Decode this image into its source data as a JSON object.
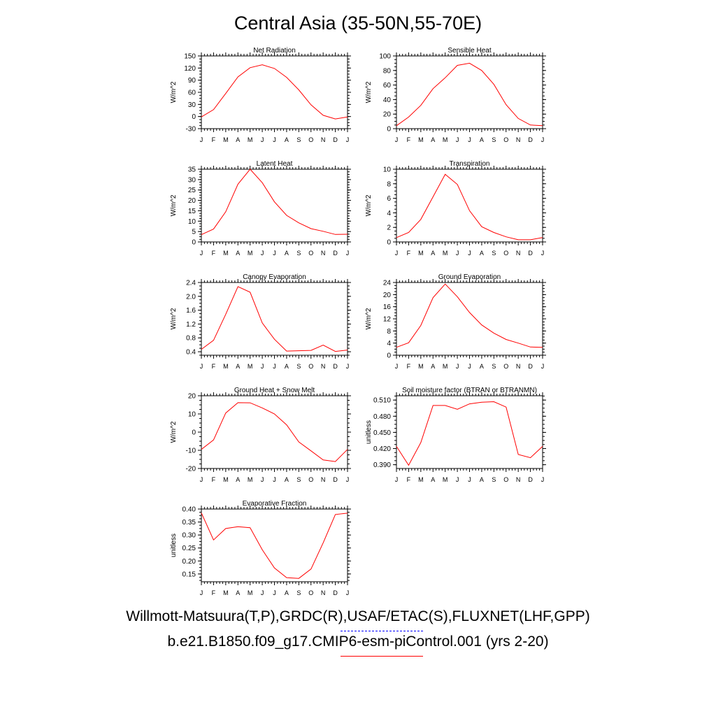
{
  "title": "Central Asia (35-50N,55-70E)",
  "footer": {
    "obs_label": "Willmott-Matsuura(T,P),GRDC(R),USAF/ETAC(S),FLUXNET(LHF,GPP)",
    "model_label": "b.e21.B1850.f09_g17.CMIP6-esm-piControl.001 (yrs 2-20)",
    "obs_color": "#0000ff",
    "model_color": "#ff0000"
  },
  "chart_data": [
    {
      "type": "line",
      "title": "Net Radiation",
      "ylabel": "W/m^2",
      "categories": [
        "J",
        "F",
        "M",
        "A",
        "M",
        "J",
        "J",
        "A",
        "S",
        "O",
        "N",
        "D",
        "J"
      ],
      "yticks": [
        -30,
        0,
        30,
        60,
        90,
        120,
        150
      ],
      "ylim": [
        -30,
        150
      ],
      "series": [
        {
          "color": "#ff0000",
          "values": [
            -1,
            17,
            57,
            98,
            121,
            128,
            119,
            97,
            66,
            29,
            3,
            -6,
            -1
          ]
        }
      ]
    },
    {
      "type": "line",
      "title": "Sensible Heat",
      "ylabel": "W/m^2",
      "categories": [
        "J",
        "F",
        "M",
        "A",
        "M",
        "J",
        "J",
        "A",
        "S",
        "O",
        "N",
        "D",
        "J"
      ],
      "yticks": [
        0,
        20,
        40,
        60,
        80,
        100
      ],
      "ylim": [
        0,
        100
      ],
      "series": [
        {
          "color": "#ff0000",
          "values": [
            4,
            16,
            32,
            55,
            70,
            87,
            90,
            80,
            61,
            33,
            14,
            5,
            4
          ]
        }
      ]
    },
    {
      "type": "line",
      "title": "Latent Heat",
      "ylabel": "W/m^2",
      "categories": [
        "J",
        "F",
        "M",
        "A",
        "M",
        "J",
        "J",
        "A",
        "S",
        "O",
        "N",
        "D",
        "J"
      ],
      "yticks": [
        0,
        5,
        10,
        15,
        20,
        25,
        30,
        35
      ],
      "ylim": [
        0,
        35
      ],
      "series": [
        {
          "color": "#ff0000",
          "values": [
            3.5,
            6.2,
            14.5,
            27.8,
            35,
            28.5,
            19.3,
            12.8,
            9.2,
            6.4,
            5.1,
            3.6,
            3.7
          ]
        }
      ]
    },
    {
      "type": "line",
      "title": "Transpiration",
      "ylabel": "W/m^2",
      "categories": [
        "J",
        "F",
        "M",
        "A",
        "M",
        "J",
        "J",
        "A",
        "S",
        "O",
        "N",
        "D",
        "J"
      ],
      "yticks": [
        0,
        2,
        4,
        6,
        8,
        10
      ],
      "ylim": [
        0,
        10
      ],
      "series": [
        {
          "color": "#ff0000",
          "values": [
            0.6,
            1.3,
            3.1,
            6.2,
            9.3,
            7.9,
            4.3,
            2.1,
            1.3,
            0.7,
            0.3,
            0.3,
            0.6
          ]
        }
      ]
    },
    {
      "type": "line",
      "title": "Canopy Evaporation",
      "ylabel": "W/m^2",
      "categories": [
        "J",
        "F",
        "M",
        "A",
        "M",
        "J",
        "J",
        "A",
        "S",
        "O",
        "N",
        "D",
        "J"
      ],
      "yticks": [
        0.4,
        0.8,
        1.2,
        1.6,
        2.0,
        2.4
      ],
      "ylabels": [
        "0.4",
        "0.8",
        "1.2",
        "1.6",
        "2.0",
        "2.4"
      ],
      "ylim": [
        0.3,
        2.4
      ],
      "series": [
        {
          "color": "#ff0000",
          "values": [
            0.47,
            0.73,
            1.48,
            2.28,
            2.12,
            1.23,
            0.76,
            0.42,
            0.43,
            0.44,
            0.59,
            0.41,
            0.45
          ]
        }
      ]
    },
    {
      "type": "line",
      "title": "Ground Evaporation",
      "ylabel": "W/m^2",
      "categories": [
        "J",
        "F",
        "M",
        "A",
        "M",
        "J",
        "J",
        "A",
        "S",
        "O",
        "N",
        "D",
        "J"
      ],
      "yticks": [
        0,
        4,
        8,
        12,
        16,
        20,
        24
      ],
      "ylim": [
        0,
        24
      ],
      "series": [
        {
          "color": "#ff0000",
          "values": [
            2.6,
            4.1,
            9.8,
            19.0,
            23.5,
            19.3,
            14.1,
            10.0,
            7.3,
            5.2,
            4.0,
            2.7,
            2.6
          ]
        }
      ]
    },
    {
      "type": "line",
      "title": "Ground Heat + Snow Melt",
      "ylabel": "W/m^2",
      "categories": [
        "J",
        "F",
        "M",
        "A",
        "M",
        "J",
        "J",
        "A",
        "S",
        "O",
        "N",
        "D",
        "J"
      ],
      "yticks": [
        -20,
        -10,
        0,
        10,
        20
      ],
      "ylim": [
        -20,
        20
      ],
      "series": [
        {
          "color": "#ff0000",
          "values": [
            -9.5,
            -4.3,
            10.5,
            16.2,
            16.1,
            13.3,
            10.0,
            4.0,
            -5.4,
            -10.3,
            -15.3,
            -16.2,
            -9.5
          ]
        }
      ]
    },
    {
      "type": "line",
      "title": "Soil moisture factor (BTRAN or BTRANMN)",
      "ylabel": "unitless",
      "categories": [
        "J",
        "F",
        "M",
        "A",
        "M",
        "J",
        "J",
        "A",
        "S",
        "O",
        "N",
        "D",
        "J"
      ],
      "yticks": [
        0.39,
        0.42,
        0.45,
        0.48,
        0.51
      ],
      "ylabels": [
        "0.390",
        "0.420",
        "0.450",
        "0.480",
        "0.510"
      ],
      "ylim": [
        0.383,
        0.518
      ],
      "series": [
        {
          "color": "#ff0000",
          "values": [
            0.424,
            0.389,
            0.431,
            0.5,
            0.5,
            0.493,
            0.503,
            0.506,
            0.507,
            0.497,
            0.409,
            0.403,
            0.424
          ]
        }
      ]
    },
    {
      "type": "line",
      "title": "Evaporative Fraction",
      "ylabel": "unitless",
      "categories": [
        "J",
        "F",
        "M",
        "A",
        "M",
        "J",
        "J",
        "A",
        "S",
        "O",
        "N",
        "D",
        "J"
      ],
      "yticks": [
        0.15,
        0.2,
        0.25,
        0.3,
        0.35,
        0.4
      ],
      "ylabels": [
        "0.15",
        "0.20",
        "0.25",
        "0.30",
        "0.35",
        "0.40"
      ],
      "ylim": [
        0.12,
        0.4
      ],
      "series": [
        {
          "color": "#ff0000",
          "values": [
            0.385,
            0.281,
            0.325,
            0.332,
            0.328,
            0.243,
            0.173,
            0.136,
            0.133,
            0.169,
            0.27,
            0.379,
            0.384
          ]
        }
      ]
    }
  ]
}
